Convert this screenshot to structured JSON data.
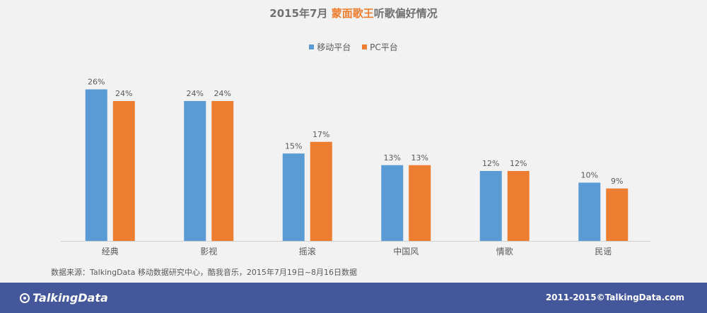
{
  "header": {
    "title_prefix": "2015年7月",
    "title_highlight": "蒙面歌王",
    "title_suffix": "听歌偏好情况"
  },
  "chart_data": {
    "type": "bar",
    "title": "2015年7月 蒙面歌王听歌偏好情况",
    "categories": [
      "经典",
      "影视",
      "摇滚",
      "中国风",
      "情歌",
      "民谣"
    ],
    "series": [
      {
        "name": "移动平台",
        "color": "#5b9bd5",
        "values": [
          26,
          24,
          15,
          13,
          12,
          10
        ],
        "labels": [
          "26%",
          "24%",
          "15%",
          "13%",
          "12%",
          "10%"
        ]
      },
      {
        "name": "PC平台",
        "color": "#ed7d31",
        "values": [
          24,
          24,
          17,
          13,
          12,
          9
        ],
        "labels": [
          "24%",
          "24%",
          "17%",
          "13%",
          "12%",
          "9%"
        ]
      }
    ],
    "ylim": [
      0,
      30
    ],
    "grid": false,
    "legend_position": "top-center",
    "xlabel": "",
    "ylabel": ""
  },
  "source": "数据来源：TalkingData 移动数据研究中心，酷我音乐，2015年7月19日~8月16日数据",
  "footer": {
    "logo": "TalkingData",
    "copyright": "2011-2015©TalkingData.com"
  }
}
